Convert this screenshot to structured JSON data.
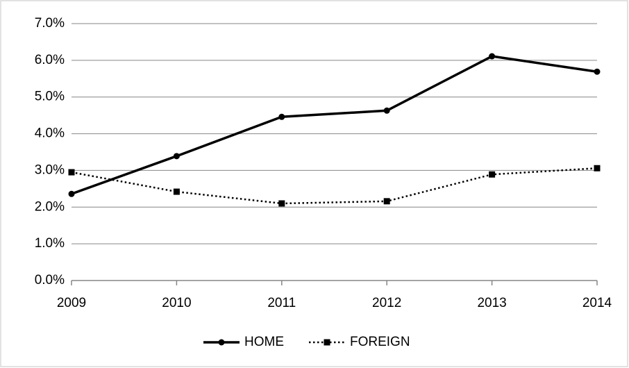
{
  "chart_data": {
    "type": "line",
    "categories": [
      "2009",
      "2010",
      "2011",
      "2012",
      "2013",
      "2014"
    ],
    "series": [
      {
        "name": "HOME",
        "color": "#000000",
        "style": "solid",
        "marker": "circle",
        "values": [
          2.36,
          3.39,
          4.46,
          4.63,
          6.11,
          5.69
        ]
      },
      {
        "name": "FOREIGN",
        "color": "#000000",
        "style": "dotted",
        "marker": "square",
        "values": [
          2.95,
          2.42,
          2.1,
          2.16,
          2.89,
          3.06
        ]
      }
    ],
    "ylim": [
      0,
      7
    ],
    "yticks": [
      {
        "value": 0,
        "label": "0.0%"
      },
      {
        "value": 1,
        "label": "1.0%"
      },
      {
        "value": 2,
        "label": "2.0%"
      },
      {
        "value": 3,
        "label": "3.0%"
      },
      {
        "value": 4,
        "label": "4.0%"
      },
      {
        "value": 5,
        "label": "5.0%"
      },
      {
        "value": 6,
        "label": "6.0%"
      },
      {
        "value": 7,
        "label": "7.0%"
      }
    ],
    "grid": true,
    "legend": "bottom"
  }
}
